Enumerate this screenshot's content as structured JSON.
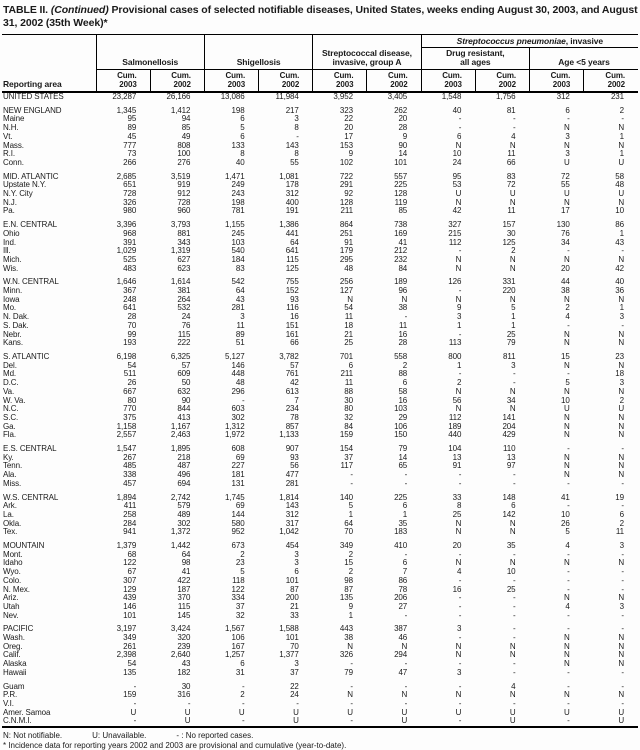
{
  "page": {
    "title_prefix": "TABLE II. ",
    "title_continued": "(Continued)",
    "title_rest": " Provisional cases of selected notifiable diseases, United States, weeks ending August 30, 2003, and August 31, 2002 (35th Week)*"
  },
  "header": {
    "reporting_area": "Reporting area",
    "pneumo_italic": "Streptococcus pneumoniae",
    "pneumo_rest": ", invasive",
    "group_salmonellosis": "Salmonellosis",
    "group_shigellosis": "Shigellosis",
    "group_strep_a_line1": "Streptococcal disease,",
    "group_strep_a_line2": "invasive, group A",
    "group_drug_resistant_line1": "Drug resistant,",
    "group_drug_resistant_line2": "all ages",
    "group_age_under5": "Age <5 years",
    "cum_label": "Cum.",
    "years": [
      "2003",
      "2002"
    ],
    "group_count": 5
  },
  "table": {
    "rows": [
      {
        "l": "UNITED STATES",
        "t": "total",
        "v": [
          "23,287",
          "26,166",
          "13,086",
          "11,984",
          "3,952",
          "3,405",
          "1,548",
          "1,756",
          "312",
          "231"
        ]
      },
      {
        "sp": true
      },
      {
        "l": "NEW ENGLAND",
        "t": "total",
        "v": [
          "1,345",
          "1,412",
          "198",
          "217",
          "323",
          "262",
          "40",
          "81",
          "6",
          "2"
        ]
      },
      {
        "l": "Maine",
        "t": "state",
        "v": [
          "95",
          "94",
          "6",
          "3",
          "22",
          "20",
          "-",
          "-",
          "-",
          "-"
        ]
      },
      {
        "l": "N.H.",
        "t": "state",
        "v": [
          "89",
          "85",
          "5",
          "8",
          "20",
          "28",
          "-",
          "-",
          "N",
          "N"
        ]
      },
      {
        "l": "Vt.",
        "t": "state",
        "v": [
          "45",
          "49",
          "6",
          "-",
          "17",
          "9",
          "6",
          "4",
          "3",
          "1"
        ]
      },
      {
        "l": "Mass.",
        "t": "state",
        "v": [
          "777",
          "808",
          "133",
          "143",
          "153",
          "90",
          "N",
          "N",
          "N",
          "N"
        ]
      },
      {
        "l": "R.I.",
        "t": "state",
        "v": [
          "73",
          "100",
          "8",
          "8",
          "9",
          "14",
          "10",
          "11",
          "3",
          "1"
        ]
      },
      {
        "l": "Conn.",
        "t": "state",
        "v": [
          "266",
          "276",
          "40",
          "55",
          "102",
          "101",
          "24",
          "66",
          "U",
          "U"
        ]
      },
      {
        "sp": true
      },
      {
        "l": "MID. ATLANTIC",
        "t": "total",
        "v": [
          "2,685",
          "3,519",
          "1,471",
          "1,081",
          "722",
          "557",
          "95",
          "83",
          "72",
          "58"
        ]
      },
      {
        "l": "Upstate N.Y.",
        "t": "state",
        "v": [
          "651",
          "919",
          "249",
          "178",
          "291",
          "225",
          "53",
          "72",
          "55",
          "48"
        ]
      },
      {
        "l": "N.Y. City",
        "t": "state",
        "v": [
          "728",
          "912",
          "243",
          "312",
          "92",
          "128",
          "U",
          "U",
          "U",
          "U"
        ]
      },
      {
        "l": "N.J.",
        "t": "state",
        "v": [
          "326",
          "728",
          "198",
          "400",
          "128",
          "119",
          "N",
          "N",
          "N",
          "N"
        ]
      },
      {
        "l": "Pa.",
        "t": "state",
        "v": [
          "980",
          "960",
          "781",
          "191",
          "211",
          "85",
          "42",
          "11",
          "17",
          "10"
        ]
      },
      {
        "sp": true
      },
      {
        "l": "E.N. CENTRAL",
        "t": "total",
        "v": [
          "3,396",
          "3,793",
          "1,155",
          "1,386",
          "864",
          "738",
          "327",
          "157",
          "130",
          "86"
        ]
      },
      {
        "l": "Ohio",
        "t": "state",
        "v": [
          "968",
          "881",
          "245",
          "441",
          "251",
          "169",
          "215",
          "30",
          "76",
          "1"
        ]
      },
      {
        "l": "Ind.",
        "t": "state",
        "v": [
          "391",
          "343",
          "103",
          "64",
          "91",
          "41",
          "112",
          "125",
          "34",
          "43"
        ]
      },
      {
        "l": "Ill.",
        "t": "state",
        "v": [
          "1,029",
          "1,319",
          "540",
          "641",
          "179",
          "212",
          "-",
          "2",
          "-",
          "-"
        ]
      },
      {
        "l": "Mich.",
        "t": "state",
        "v": [
          "525",
          "627",
          "184",
          "115",
          "295",
          "232",
          "N",
          "N",
          "N",
          "N"
        ]
      },
      {
        "l": "Wis.",
        "t": "state",
        "v": [
          "483",
          "623",
          "83",
          "125",
          "48",
          "84",
          "N",
          "N",
          "20",
          "42"
        ]
      },
      {
        "sp": true
      },
      {
        "l": "W.N. CENTRAL",
        "t": "total",
        "v": [
          "1,646",
          "1,614",
          "542",
          "755",
          "256",
          "189",
          "126",
          "331",
          "44",
          "40"
        ]
      },
      {
        "l": "Minn.",
        "t": "state",
        "v": [
          "367",
          "381",
          "64",
          "152",
          "127",
          "96",
          "-",
          "220",
          "38",
          "36"
        ]
      },
      {
        "l": "Iowa",
        "t": "state",
        "v": [
          "248",
          "264",
          "43",
          "93",
          "N",
          "N",
          "N",
          "N",
          "N",
          "N"
        ]
      },
      {
        "l": "Mo.",
        "t": "state",
        "v": [
          "641",
          "532",
          "281",
          "116",
          "54",
          "38",
          "9",
          "5",
          "2",
          "1"
        ]
      },
      {
        "l": "N. Dak.",
        "t": "state",
        "v": [
          "28",
          "24",
          "3",
          "16",
          "11",
          "-",
          "3",
          "1",
          "4",
          "3"
        ]
      },
      {
        "l": "S. Dak.",
        "t": "state",
        "v": [
          "70",
          "76",
          "11",
          "151",
          "18",
          "11",
          "1",
          "1",
          "-",
          "-"
        ]
      },
      {
        "l": "Nebr.",
        "t": "state",
        "v": [
          "99",
          "115",
          "89",
          "161",
          "21",
          "16",
          "-",
          "25",
          "N",
          "N"
        ]
      },
      {
        "l": "Kans.",
        "t": "state",
        "v": [
          "193",
          "222",
          "51",
          "66",
          "25",
          "28",
          "113",
          "79",
          "N",
          "N"
        ]
      },
      {
        "sp": true
      },
      {
        "l": "S. ATLANTIC",
        "t": "total",
        "v": [
          "6,198",
          "6,325",
          "5,127",
          "3,782",
          "701",
          "558",
          "800",
          "811",
          "15",
          "23"
        ]
      },
      {
        "l": "Del.",
        "t": "state",
        "v": [
          "54",
          "57",
          "146",
          "57",
          "6",
          "2",
          "1",
          "3",
          "N",
          "N"
        ]
      },
      {
        "l": "Md.",
        "t": "state",
        "v": [
          "511",
          "609",
          "448",
          "761",
          "211",
          "88",
          "-",
          "-",
          "-",
          "18"
        ]
      },
      {
        "l": "D.C.",
        "t": "state",
        "v": [
          "26",
          "50",
          "48",
          "42",
          "11",
          "6",
          "2",
          "-",
          "5",
          "3"
        ]
      },
      {
        "l": "Va.",
        "t": "state",
        "v": [
          "667",
          "632",
          "296",
          "613",
          "88",
          "58",
          "N",
          "N",
          "N",
          "N"
        ]
      },
      {
        "l": "W. Va.",
        "t": "state",
        "v": [
          "80",
          "90",
          "-",
          "7",
          "30",
          "16",
          "56",
          "34",
          "10",
          "2"
        ]
      },
      {
        "l": "N.C.",
        "t": "state",
        "v": [
          "770",
          "844",
          "603",
          "234",
          "80",
          "103",
          "N",
          "N",
          "U",
          "U"
        ]
      },
      {
        "l": "S.C.",
        "t": "state",
        "v": [
          "375",
          "413",
          "302",
          "78",
          "32",
          "29",
          "112",
          "141",
          "N",
          "N"
        ]
      },
      {
        "l": "Ga.",
        "t": "state",
        "v": [
          "1,158",
          "1,167",
          "1,312",
          "857",
          "84",
          "106",
          "189",
          "204",
          "N",
          "N"
        ]
      },
      {
        "l": "Fla.",
        "t": "state",
        "v": [
          "2,557",
          "2,463",
          "1,972",
          "1,133",
          "159",
          "150",
          "440",
          "429",
          "N",
          "N"
        ]
      },
      {
        "sp": true
      },
      {
        "l": "E.S. CENTRAL",
        "t": "total",
        "v": [
          "1,547",
          "1,895",
          "608",
          "907",
          "154",
          "79",
          "104",
          "110",
          "-",
          "-"
        ]
      },
      {
        "l": "Ky.",
        "t": "state",
        "v": [
          "267",
          "218",
          "69",
          "93",
          "37",
          "14",
          "13",
          "13",
          "N",
          "N"
        ]
      },
      {
        "l": "Tenn.",
        "t": "state",
        "v": [
          "485",
          "487",
          "227",
          "56",
          "117",
          "65",
          "91",
          "97",
          "N",
          "N"
        ]
      },
      {
        "l": "Ala.",
        "t": "state",
        "v": [
          "338",
          "496",
          "181",
          "477",
          "-",
          "-",
          "-",
          "-",
          "N",
          "N"
        ]
      },
      {
        "l": "Miss.",
        "t": "state",
        "v": [
          "457",
          "694",
          "131",
          "281",
          "-",
          "-",
          "-",
          "-",
          "-",
          "-"
        ]
      },
      {
        "sp": true
      },
      {
        "l": "W.S. CENTRAL",
        "t": "total",
        "v": [
          "1,894",
          "2,742",
          "1,745",
          "1,814",
          "140",
          "225",
          "33",
          "148",
          "41",
          "19"
        ]
      },
      {
        "l": "Ark.",
        "t": "state",
        "v": [
          "411",
          "579",
          "69",
          "143",
          "5",
          "6",
          "8",
          "6",
          "-",
          "-"
        ]
      },
      {
        "l": "La.",
        "t": "state",
        "v": [
          "258",
          "489",
          "144",
          "312",
          "1",
          "1",
          "25",
          "142",
          "10",
          "6"
        ]
      },
      {
        "l": "Okla.",
        "t": "state",
        "v": [
          "284",
          "302",
          "580",
          "317",
          "64",
          "35",
          "N",
          "N",
          "26",
          "2"
        ]
      },
      {
        "l": "Tex.",
        "t": "state",
        "v": [
          "941",
          "1,372",
          "952",
          "1,042",
          "70",
          "183",
          "N",
          "N",
          "5",
          "11"
        ]
      },
      {
        "sp": true
      },
      {
        "l": "MOUNTAIN",
        "t": "total",
        "v": [
          "1,379",
          "1,442",
          "673",
          "454",
          "349",
          "410",
          "20",
          "35",
          "4",
          "3"
        ]
      },
      {
        "l": "Mont.",
        "t": "state",
        "v": [
          "68",
          "64",
          "2",
          "3",
          "2",
          "-",
          "-",
          "-",
          "-",
          "-"
        ]
      },
      {
        "l": "Idaho",
        "t": "state",
        "v": [
          "122",
          "98",
          "23",
          "3",
          "15",
          "6",
          "N",
          "N",
          "N",
          "N"
        ]
      },
      {
        "l": "Wyo.",
        "t": "state",
        "v": [
          "67",
          "41",
          "5",
          "6",
          "2",
          "7",
          "4",
          "10",
          "-",
          "-"
        ]
      },
      {
        "l": "Colo.",
        "t": "state",
        "v": [
          "307",
          "422",
          "118",
          "101",
          "98",
          "86",
          "-",
          "-",
          "-",
          "-"
        ]
      },
      {
        "l": "N. Mex.",
        "t": "state",
        "v": [
          "129",
          "187",
          "122",
          "87",
          "87",
          "78",
          "16",
          "25",
          "-",
          "-"
        ]
      },
      {
        "l": "Ariz.",
        "t": "state",
        "v": [
          "439",
          "370",
          "334",
          "200",
          "135",
          "206",
          "-",
          "-",
          "N",
          "N"
        ]
      },
      {
        "l": "Utah",
        "t": "state",
        "v": [
          "146",
          "115",
          "37",
          "21",
          "9",
          "27",
          "-",
          "-",
          "4",
          "3"
        ]
      },
      {
        "l": "Nev.",
        "t": "state",
        "v": [
          "101",
          "145",
          "32",
          "33",
          "1",
          "-",
          "-",
          "-",
          "-",
          "-"
        ]
      },
      {
        "sp": true
      },
      {
        "l": "PACIFIC",
        "t": "total",
        "v": [
          "3,197",
          "3,424",
          "1,567",
          "1,588",
          "443",
          "387",
          "3",
          "-",
          "-",
          "-"
        ]
      },
      {
        "l": "Wash.",
        "t": "state",
        "v": [
          "349",
          "320",
          "106",
          "101",
          "38",
          "46",
          "-",
          "-",
          "N",
          "N"
        ]
      },
      {
        "l": "Oreg.",
        "t": "state",
        "v": [
          "261",
          "239",
          "167",
          "70",
          "N",
          "N",
          "N",
          "N",
          "N",
          "N"
        ]
      },
      {
        "l": "Calif.",
        "t": "state",
        "v": [
          "2,398",
          "2,640",
          "1,257",
          "1,377",
          "326",
          "294",
          "N",
          "N",
          "N",
          "N"
        ]
      },
      {
        "l": "Alaska",
        "t": "state",
        "v": [
          "54",
          "43",
          "6",
          "3",
          "-",
          "-",
          "-",
          "-",
          "N",
          "N"
        ]
      },
      {
        "l": "Hawaii",
        "t": "state",
        "v": [
          "135",
          "182",
          "31",
          "37",
          "79",
          "47",
          "3",
          "-",
          "-",
          "-"
        ]
      },
      {
        "sp": true
      },
      {
        "l": "Guam",
        "t": "state",
        "v": [
          "-",
          "30",
          "-",
          "22",
          "-",
          "-",
          "-",
          "4",
          "-",
          "-"
        ]
      },
      {
        "l": "P.R.",
        "t": "state",
        "v": [
          "159",
          "316",
          "2",
          "24",
          "N",
          "N",
          "N",
          "N",
          "N",
          "N"
        ]
      },
      {
        "l": "V.I.",
        "t": "state",
        "v": [
          "-",
          "-",
          "-",
          "-",
          "-",
          "-",
          "-",
          "-",
          "-",
          "-"
        ]
      },
      {
        "l": "Amer. Samoa",
        "t": "state",
        "v": [
          "U",
          "U",
          "U",
          "U",
          "U",
          "U",
          "U",
          "U",
          "U",
          "U"
        ]
      },
      {
        "l": "C.N.M.I.",
        "t": "state",
        "v": [
          "-",
          "U",
          "-",
          "U",
          "-",
          "U",
          "-",
          "U",
          "-",
          "U"
        ]
      }
    ]
  },
  "footnotes": {
    "n_note": "N: Not notifiable.",
    "u_note": "U: Unavailable.",
    "dash_note": "- : No reported cases.",
    "asterisk_note": "* Incidence data for reporting years 2002 and 2003 are provisional and cumulative (year-to-date)."
  }
}
